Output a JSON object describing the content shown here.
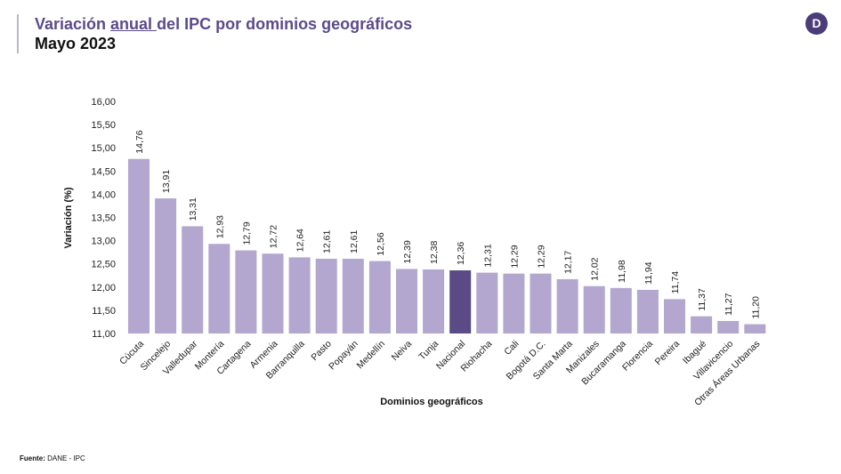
{
  "header": {
    "title_part1": "Variación ",
    "title_underlined": "anual ",
    "title_part2": "del IPC por dominios geográficos",
    "subtitle": "Mayo 2023",
    "logo_letter": "D"
  },
  "footer": {
    "label": "Fuente:",
    "source": " DANE - IPC"
  },
  "colors": {
    "bar": "#b3a6cf",
    "highlight_bar": "#5a4a85",
    "title": "#5c4a8c"
  },
  "chart_data": {
    "type": "bar",
    "xlabel": "Dominios geográficos",
    "ylabel": "Variación (%)",
    "ylim": [
      11.0,
      16.0
    ],
    "yticks": [
      "11,00",
      "11,50",
      "12,00",
      "12,50",
      "13,00",
      "13,50",
      "14,00",
      "14,50",
      "15,00",
      "15,50",
      "16,00"
    ],
    "highlight": "Nacional",
    "categories": [
      "Cúcuta",
      "Sincelejo",
      "Valledupar",
      "Montería",
      "Cartagena",
      "Armenia",
      "Barranquilla",
      "Pasto",
      "Popayán",
      "Medellín",
      "Neiva",
      "Tunja",
      "Nacional",
      "Riohacha",
      "Cali",
      "Bogotá D.C.",
      "Santa Marta",
      "Manizales",
      "Bucaramanga",
      "Florencia",
      "Pereira",
      "Ibagué",
      "Villavicencio",
      "Otras Áreas Urbanas"
    ],
    "values": [
      14.76,
      13.91,
      13.31,
      12.93,
      12.79,
      12.72,
      12.64,
      12.61,
      12.61,
      12.56,
      12.39,
      12.38,
      12.36,
      12.31,
      12.29,
      12.29,
      12.17,
      12.02,
      11.98,
      11.94,
      11.74,
      11.37,
      11.27,
      11.2
    ],
    "labels": [
      "14,76",
      "13,91",
      "13,31",
      "12,93",
      "12,79",
      "12,72",
      "12,64",
      "12,61",
      "12,61",
      "12,56",
      "12,39",
      "12,38",
      "12,36",
      "12,31",
      "12,29",
      "12,29",
      "12,17",
      "12,02",
      "11,98",
      "11,94",
      "11,74",
      "11,37",
      "11,27",
      "11,20"
    ],
    "grid": false,
    "legend": false
  }
}
